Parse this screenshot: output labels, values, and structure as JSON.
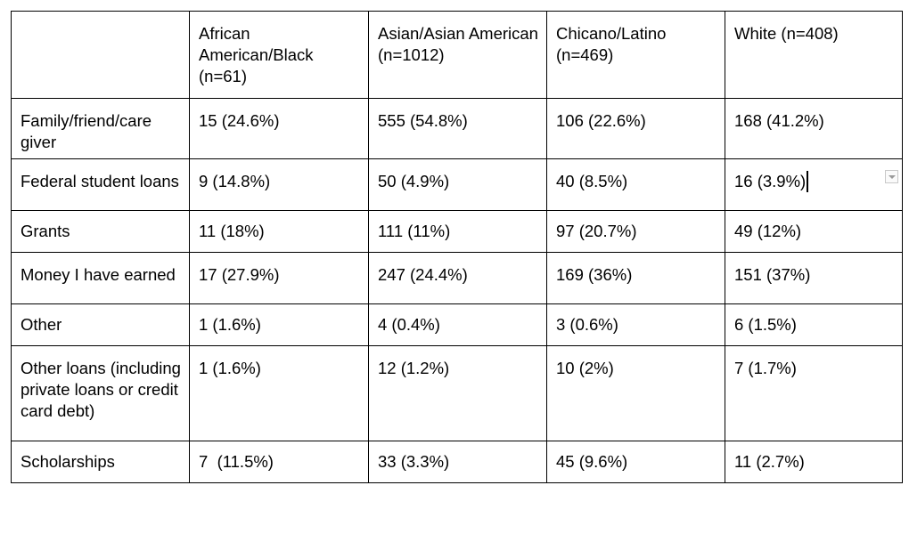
{
  "table": {
    "headers": [
      "",
      "African American/Black (n=61)",
      "Asian/Asian American (n=1012)",
      "Chicano/Latino (n=469)",
      "White (n=408)"
    ],
    "rows": [
      [
        "Family/friend/care giver",
        "15 (24.6%)",
        "555 (54.8%)",
        "106 (22.6%)",
        "168 (41.2%)"
      ],
      [
        "Federal student loans",
        "9 (14.8%)",
        "50 (4.9%)",
        "40 (8.5%)",
        "16 (3.9%)"
      ],
      [
        "Grants",
        "11 (18%)",
        "111 (11%)",
        "97 (20.7%)",
        "49 (12%)"
      ],
      [
        "Money I have earned",
        "17 (27.9%)",
        "247 (24.4%)",
        "169 (36%)",
        "151 (37%)"
      ],
      [
        "Other",
        "1 (1.6%)",
        "4 (0.4%)",
        "3 (0.6%)",
        "6 (1.5%)"
      ],
      [
        "Other loans (including private loans or credit card debt)",
        "1 (1.6%)",
        "12 (1.2%)",
        "10 (2%)",
        "7 (1.7%)"
      ],
      [
        "Scholarships",
        "7  (11.5%)",
        "33 (3.3%)",
        "45 (9.6%)",
        "11 (2.7%)"
      ]
    ]
  },
  "icons": {
    "cell_menu": "chevron-down-icon",
    "cursor": "text-cursor"
  }
}
